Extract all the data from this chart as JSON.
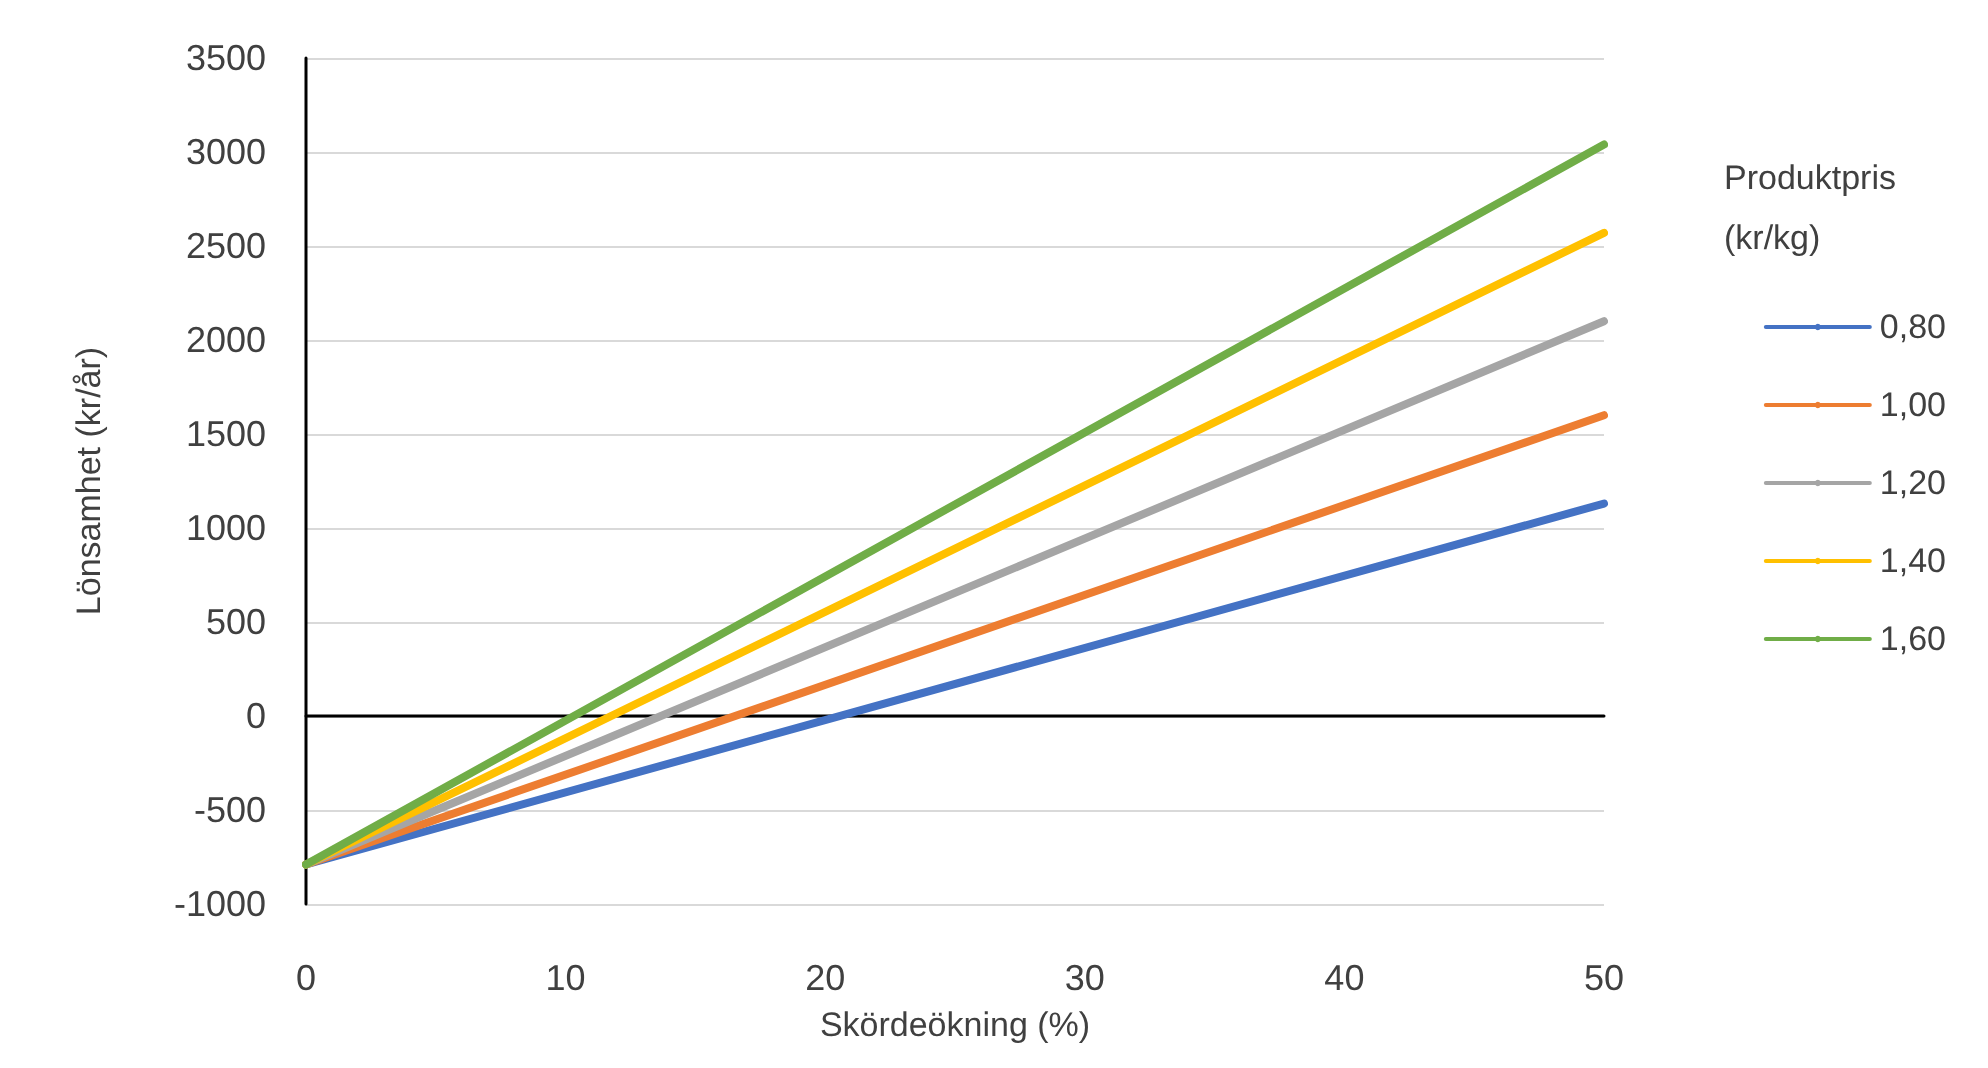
{
  "chart_data": {
    "type": "line",
    "xlabel": "Skördeökning (%)",
    "ylabel": "Lönsamhet (kr/år)",
    "legend_title": "Produktpris (kr/kg)",
    "x": [
      0,
      50
    ],
    "series": [
      {
        "name": "0,80",
        "color": "#4472c4",
        "values": [
          -790,
          1130
        ]
      },
      {
        "name": "1,00",
        "color": "#ed7d31",
        "values": [
          -790,
          1600
        ]
      },
      {
        "name": "1,20",
        "color": "#a5a5a5",
        "values": [
          -790,
          2100
        ]
      },
      {
        "name": "1,40",
        "color": "#ffc000",
        "values": [
          -790,
          2570
        ]
      },
      {
        "name": "1,60",
        "color": "#70ad47",
        "values": [
          -790,
          3040
        ]
      }
    ],
    "xlim": [
      0,
      50
    ],
    "xticks": [
      0,
      10,
      20,
      30,
      40,
      50
    ],
    "ylim": [
      -1000,
      3500
    ],
    "yticks": [
      -1000,
      -500,
      0,
      500,
      1000,
      1500,
      2000,
      2500,
      3000,
      3500
    ],
    "grid": "y",
    "legend": "right",
    "marker": "none",
    "line_style": "solid"
  }
}
